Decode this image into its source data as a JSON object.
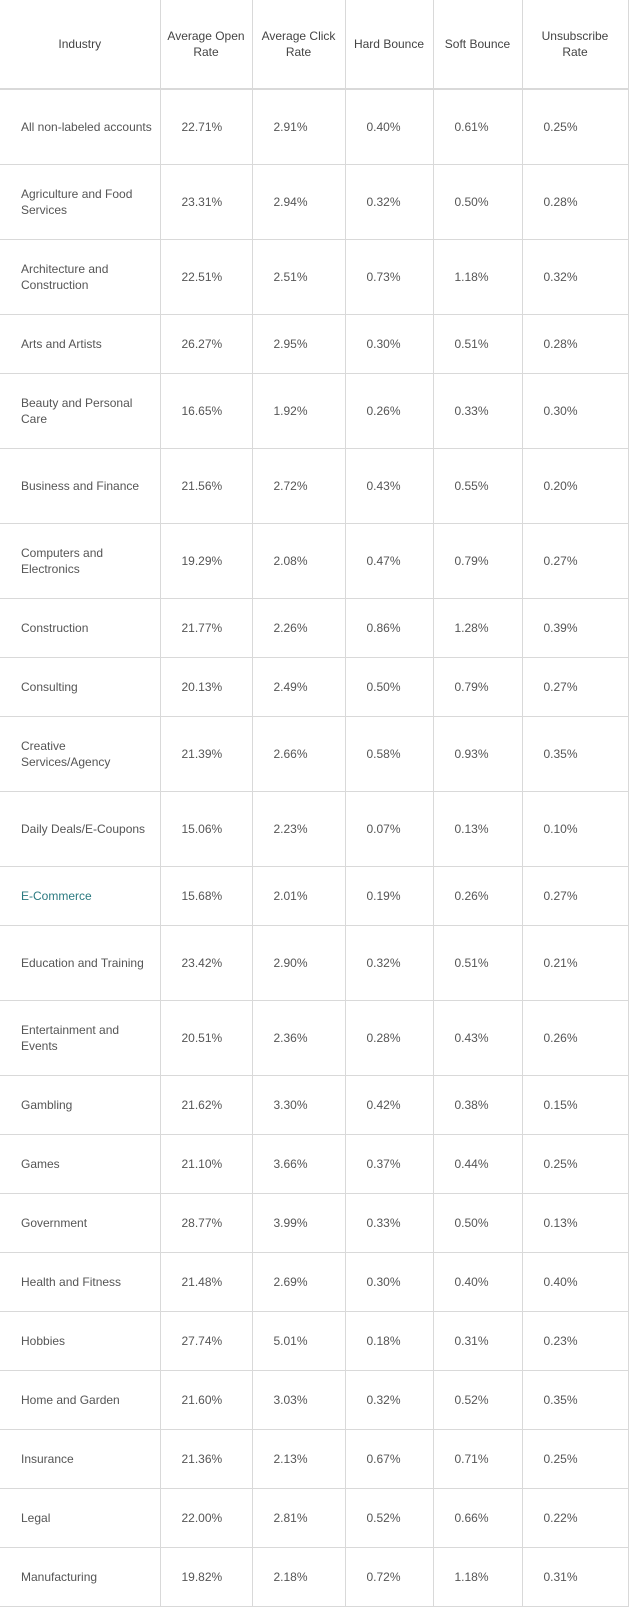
{
  "headers": [
    "Industry",
    "Average Open Rate",
    "Average Click Rate",
    "Hard Bounce",
    "Soft Bounce",
    "Unsubscribe Rate"
  ],
  "link_color": "#2b7a80",
  "rows": [
    {
      "industry": "All non-labeled accounts",
      "open": "22.71%",
      "click": "2.91%",
      "hard": "0.40%",
      "soft": "0.61%",
      "unsub": "0.25%"
    },
    {
      "industry": "Agriculture and Food Services",
      "open": "23.31%",
      "click": "2.94%",
      "hard": "0.32%",
      "soft": "0.50%",
      "unsub": "0.28%"
    },
    {
      "industry": "Architecture and Construction",
      "open": "22.51%",
      "click": "2.51%",
      "hard": "0.73%",
      "soft": "1.18%",
      "unsub": "0.32%"
    },
    {
      "industry": "Arts and Artists",
      "open": "26.27%",
      "click": "2.95%",
      "hard": "0.30%",
      "soft": "0.51%",
      "unsub": "0.28%"
    },
    {
      "industry": "Beauty and Personal Care",
      "open": "16.65%",
      "click": "1.92%",
      "hard": "0.26%",
      "soft": "0.33%",
      "unsub": "0.30%"
    },
    {
      "industry": "Business and Finance",
      "open": "21.56%",
      "click": "2.72%",
      "hard": "0.43%",
      "soft": "0.55%",
      "unsub": "0.20%"
    },
    {
      "industry": "Computers and Electronics",
      "open": "19.29%",
      "click": "2.08%",
      "hard": "0.47%",
      "soft": "0.79%",
      "unsub": "0.27%"
    },
    {
      "industry": "Construction",
      "open": "21.77%",
      "click": "2.26%",
      "hard": "0.86%",
      "soft": "1.28%",
      "unsub": "0.39%"
    },
    {
      "industry": "Consulting",
      "open": "20.13%",
      "click": "2.49%",
      "hard": "0.50%",
      "soft": "0.79%",
      "unsub": "0.27%"
    },
    {
      "industry": "Creative Services/Agency",
      "open": "21.39%",
      "click": "2.66%",
      "hard": "0.58%",
      "soft": "0.93%",
      "unsub": "0.35%"
    },
    {
      "industry": "Daily Deals/E-Coupons",
      "open": "15.06%",
      "click": "2.23%",
      "hard": "0.07%",
      "soft": "0.13%",
      "unsub": "0.10%"
    },
    {
      "industry": "E-Commerce",
      "open": "15.68%",
      "click": "2.01%",
      "hard": "0.19%",
      "soft": "0.26%",
      "unsub": "0.27%",
      "link": true
    },
    {
      "industry": "Education and Training",
      "open": "23.42%",
      "click": "2.90%",
      "hard": "0.32%",
      "soft": "0.51%",
      "unsub": "0.21%"
    },
    {
      "industry": "Entertainment and Events",
      "open": "20.51%",
      "click": "2.36%",
      "hard": "0.28%",
      "soft": "0.43%",
      "unsub": "0.26%"
    },
    {
      "industry": "Gambling",
      "open": "21.62%",
      "click": "3.30%",
      "hard": "0.42%",
      "soft": "0.38%",
      "unsub": "0.15%"
    },
    {
      "industry": "Games",
      "open": "21.10%",
      "click": "3.66%",
      "hard": "0.37%",
      "soft": "0.44%",
      "unsub": "0.25%"
    },
    {
      "industry": "Government",
      "open": "28.77%",
      "click": "3.99%",
      "hard": "0.33%",
      "soft": "0.50%",
      "unsub": "0.13%"
    },
    {
      "industry": "Health and Fitness",
      "open": "21.48%",
      "click": "2.69%",
      "hard": "0.30%",
      "soft": "0.40%",
      "unsub": "0.40%"
    },
    {
      "industry": "Hobbies",
      "open": "27.74%",
      "click": "5.01%",
      "hard": "0.18%",
      "soft": "0.31%",
      "unsub": "0.23%"
    },
    {
      "industry": "Home and Garden",
      "open": "21.60%",
      "click": "3.03%",
      "hard": "0.32%",
      "soft": "0.52%",
      "unsub": "0.35%"
    },
    {
      "industry": "Insurance",
      "open": "21.36%",
      "click": "2.13%",
      "hard": "0.67%",
      "soft": "0.71%",
      "unsub": "0.25%"
    },
    {
      "industry": "Legal",
      "open": "22.00%",
      "click": "2.81%",
      "hard": "0.52%",
      "soft": "0.66%",
      "unsub": "0.22%"
    },
    {
      "industry": "Manufacturing",
      "open": "19.82%",
      "click": "2.18%",
      "hard": "0.72%",
      "soft": "1.18%",
      "unsub": "0.31%"
    }
  ]
}
